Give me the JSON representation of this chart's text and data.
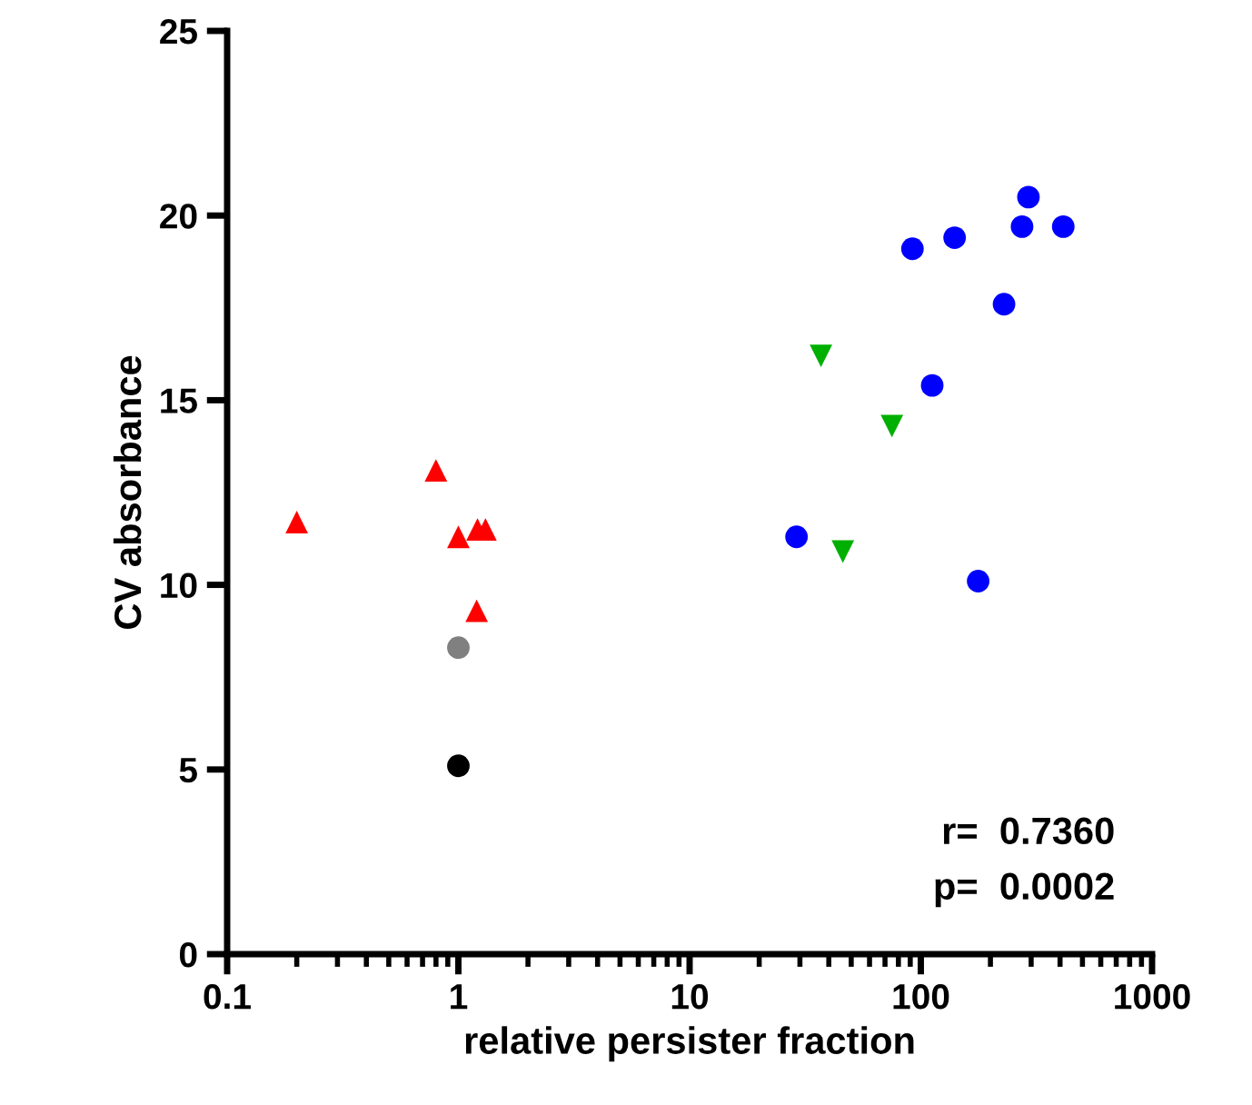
{
  "chart_data": {
    "type": "scatter",
    "xlabel": "relative persister fraction",
    "ylabel": "CV absorbance",
    "log": "x",
    "xlim": [
      0.1,
      1000
    ],
    "xticks": [
      0.1,
      1,
      10,
      100,
      1000
    ],
    "ylim": [
      0,
      25
    ],
    "yticks": [
      0,
      5,
      10,
      15,
      20,
      25
    ],
    "grid": false,
    "legend": false,
    "series": [
      {
        "color": "#ff0000",
        "marker": "triangle",
        "x": [
          0.2,
          0.8,
          1.0,
          1.21,
          1.31,
          1.2
        ],
        "values": [
          11.7,
          13.1,
          11.3,
          11.5,
          11.5,
          9.3
        ]
      },
      {
        "color": "#808080",
        "marker": "circle",
        "x": [
          1.0
        ],
        "values": [
          8.3
        ]
      },
      {
        "color": "#000000",
        "marker": "circle",
        "x": [
          1.0
        ],
        "values": [
          5.1
        ]
      },
      {
        "color": "#00b000",
        "marker": "triangle_down",
        "x": [
          37,
          75,
          46
        ],
        "values": [
          16.2,
          14.3,
          10.9
        ]
      },
      {
        "color": "#0000ff",
        "marker": "circle",
        "x": [
          292,
          274,
          413,
          140,
          92,
          229,
          112,
          29,
          177
        ],
        "values": [
          20.5,
          19.7,
          19.7,
          19.4,
          19.1,
          17.6,
          15.4,
          11.3,
          10.1
        ]
      }
    ],
    "annotations": [
      "r=  0.7360",
      "p=  0.0002"
    ]
  }
}
